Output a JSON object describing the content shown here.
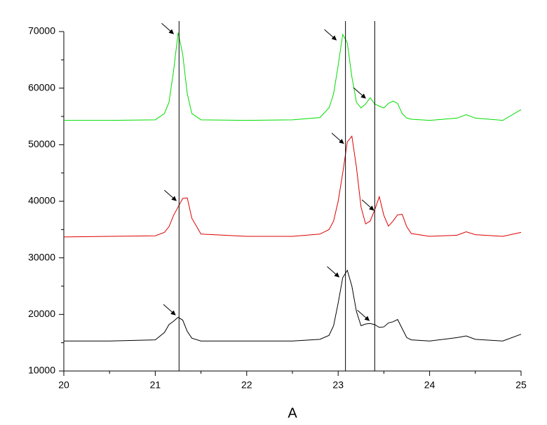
{
  "chart_data": {
    "type": "line",
    "xlabel": "A",
    "x": [
      20,
      20.5,
      21,
      21.1,
      21.15,
      21.2,
      21.25,
      21.3,
      21.35,
      21.4,
      21.5,
      22,
      22.5,
      22.8,
      22.9,
      22.95,
      23.0,
      23.05,
      23.1,
      23.15,
      23.2,
      23.25,
      23.3,
      23.35,
      23.4,
      23.45,
      23.5,
      23.55,
      23.6,
      23.65,
      23.7,
      23.75,
      23.8,
      24,
      24.3,
      24.4,
      24.5,
      24.8,
      25
    ],
    "series": [
      {
        "color": "#00dd00",
        "values": [
          54300,
          54300,
          54400,
          55500,
          57500,
          63000,
          69800,
          66000,
          59000,
          55500,
          54400,
          54300,
          54400,
          54800,
          56500,
          59000,
          64000,
          69500,
          68000,
          62000,
          57500,
          56500,
          57200,
          58300,
          57200,
          56800,
          56500,
          57300,
          57700,
          57300,
          55500,
          54700,
          54500,
          54300,
          54700,
          55300,
          54700,
          54300,
          56200
        ]
      },
      {
        "color": "#dd0000",
        "values": [
          33700,
          33800,
          33900,
          34500,
          35500,
          37500,
          39000,
          40500,
          40600,
          37000,
          34200,
          33800,
          33800,
          34200,
          35000,
          36500,
          40000,
          45000,
          50500,
          51500,
          46000,
          39000,
          36000,
          36500,
          38500,
          40800,
          37500,
          35600,
          36500,
          37600,
          37700,
          35500,
          34300,
          33800,
          34000,
          34600,
          34100,
          33800,
          34500
        ]
      },
      {
        "color": "#000000",
        "values": [
          15300,
          15300,
          15500,
          16800,
          18200,
          18800,
          19500,
          19000,
          17000,
          15800,
          15300,
          15300,
          15300,
          15600,
          16300,
          18000,
          22000,
          26500,
          27800,
          25000,
          20500,
          18000,
          18300,
          18400,
          18200,
          17700,
          17800,
          18500,
          18700,
          19100,
          17500,
          15900,
          15500,
          15300,
          15900,
          16200,
          15600,
          15300,
          16500
        ]
      }
    ],
    "vlines": [
      21.26,
      23.08,
      23.4
    ],
    "arrows": [
      {
        "x": 21.2,
        "y": 69600
      },
      {
        "x": 22.98,
        "y": 68500
      },
      {
        "x": 23.3,
        "y": 58200
      },
      {
        "x": 21.23,
        "y": 40100
      },
      {
        "x": 23.06,
        "y": 50200
      },
      {
        "x": 23.39,
        "y": 38400
      },
      {
        "x": 21.22,
        "y": 19900
      },
      {
        "x": 23.01,
        "y": 26600
      },
      {
        "x": 23.34,
        "y": 18900
      }
    ],
    "xlim": [
      20,
      25
    ],
    "xticks": [
      20,
      21,
      22,
      23,
      24,
      25
    ],
    "xminorticks": [
      20.5,
      21.5,
      22.5,
      23.5,
      24.5
    ],
    "ylim": [
      10000,
      70000
    ],
    "yticks": [
      10000,
      20000,
      30000,
      40000,
      50000,
      60000,
      70000
    ],
    "yminorticks": [
      15000,
      25000,
      35000,
      45000,
      55000,
      65000
    ],
    "grid": false
  }
}
